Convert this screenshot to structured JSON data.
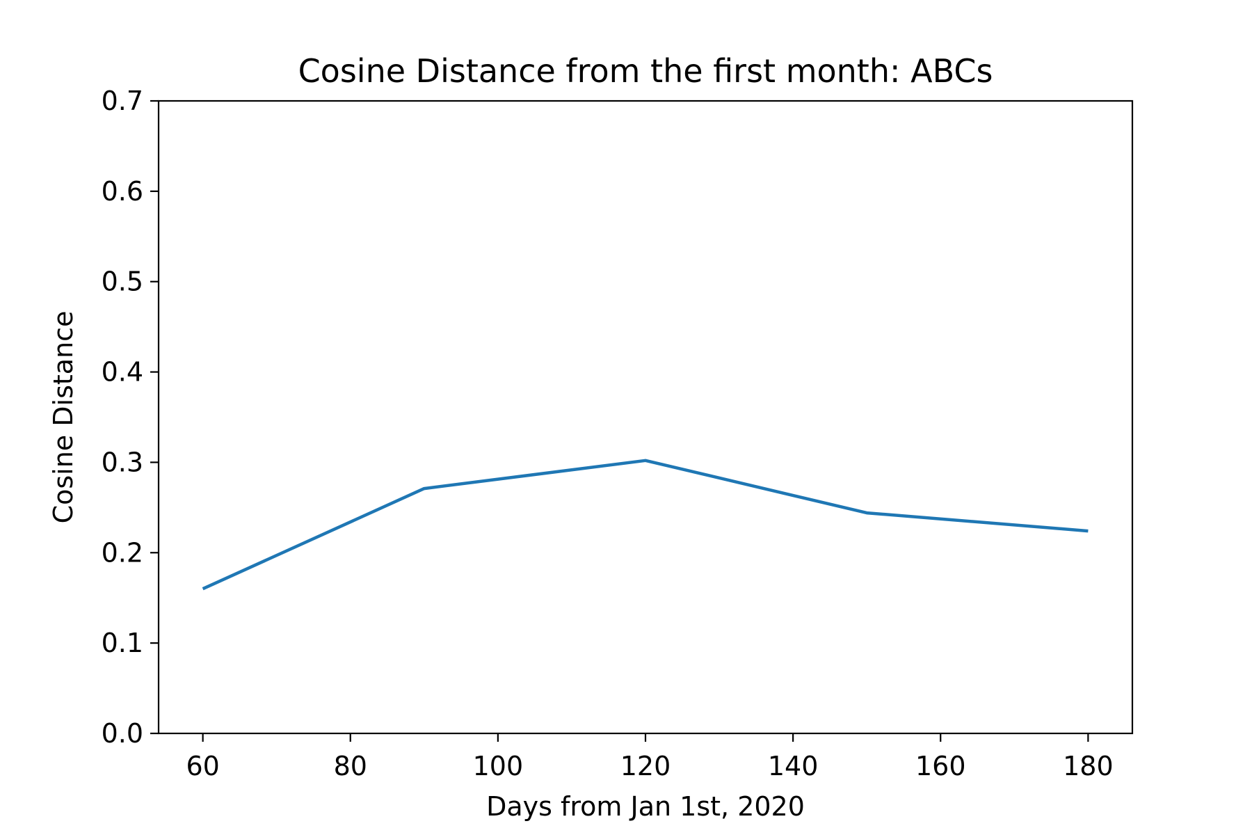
{
  "chart_data": {
    "type": "line",
    "title": "Cosine Distance from the first month: ABCs",
    "xlabel": "Days from Jan 1st, 2020",
    "ylabel": "Cosine Distance",
    "xlim": [
      54,
      186
    ],
    "ylim": [
      0.0,
      0.7
    ],
    "xticks": [
      60,
      80,
      100,
      120,
      140,
      160,
      180
    ],
    "yticks": [
      0.0,
      0.1,
      0.2,
      0.3,
      0.4,
      0.5,
      0.6,
      0.7
    ],
    "xtick_labels": [
      "60",
      "80",
      "100",
      "120",
      "140",
      "160",
      "180"
    ],
    "ytick_labels": [
      "0.0",
      "0.1",
      "0.2",
      "0.3",
      "0.4",
      "0.5",
      "0.6",
      "0.7"
    ],
    "grid": false,
    "series": [
      {
        "color": "#1f77b4",
        "x": [
          60,
          90,
          120,
          150,
          180
        ],
        "y": [
          0.16,
          0.271,
          0.302,
          0.244,
          0.224
        ]
      }
    ]
  }
}
